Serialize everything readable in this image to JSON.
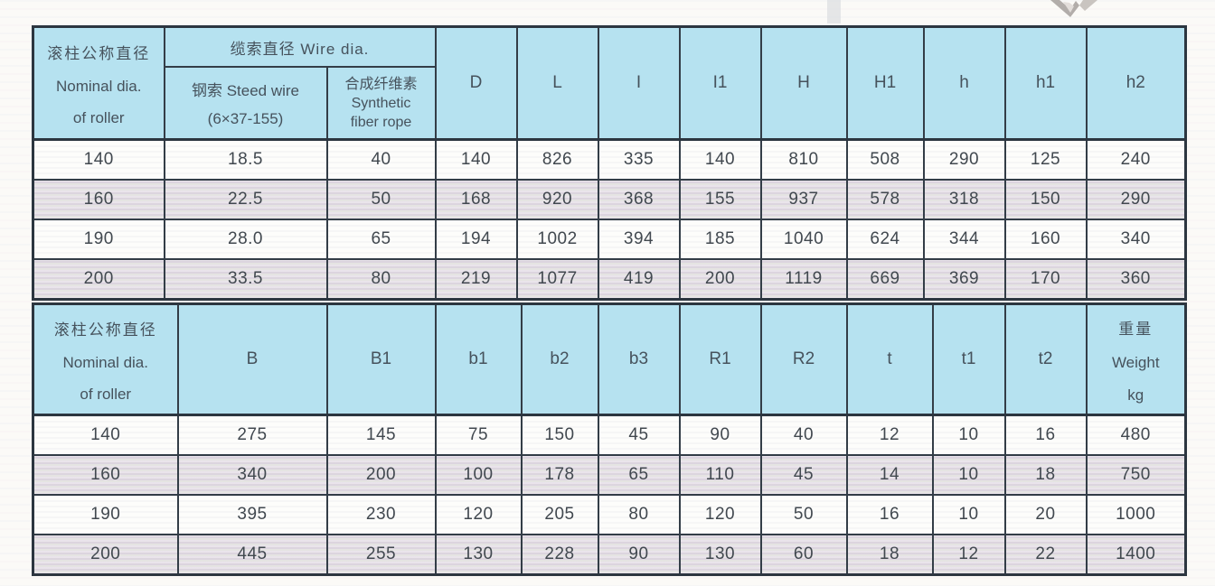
{
  "colors": {
    "header_bg": "#b6e2f0",
    "shaded_row": "#e4dfe5",
    "border": "#2c3640",
    "text": "#46525c"
  },
  "table1": {
    "roller_header": [
      "滚柱公称直径",
      "Nominal dia.",
      "of roller"
    ],
    "wire_dia_group": "缆索直径 Wire dia.",
    "steel_wire": [
      "钢索 Steed wire",
      "(6×37-155)"
    ],
    "synthetic": [
      "合成纤维素",
      "Synthetic",
      "fiber rope"
    ],
    "dim_headers": [
      "D",
      "L",
      "I",
      "I1",
      "H",
      "H1",
      "h",
      "h1",
      "h2"
    ],
    "rows": [
      [
        "140",
        "18.5",
        "40",
        "140",
        "826",
        "335",
        "140",
        "810",
        "508",
        "290",
        "125",
        "240"
      ],
      [
        "160",
        "22.5",
        "50",
        "168",
        "920",
        "368",
        "155",
        "937",
        "578",
        "318",
        "150",
        "290"
      ],
      [
        "190",
        "28.0",
        "65",
        "194",
        "1002",
        "394",
        "185",
        "1040",
        "624",
        "344",
        "160",
        "340"
      ],
      [
        "200",
        "33.5",
        "80",
        "219",
        "1077",
        "419",
        "200",
        "1119",
        "669",
        "369",
        "170",
        "360"
      ]
    ]
  },
  "table2": {
    "roller_header": [
      "滚柱公称直径",
      "Nominal dia.",
      "of roller"
    ],
    "dim_headers": [
      "B",
      "B1",
      "b1",
      "b2",
      "b3",
      "R1",
      "R2",
      "t",
      "t1",
      "t2"
    ],
    "weight_header": [
      "重量",
      "Weight",
      "kg"
    ],
    "rows": [
      [
        "140",
        "275",
        "145",
        "75",
        "150",
        "45",
        "90",
        "40",
        "12",
        "10",
        "16",
        "480"
      ],
      [
        "160",
        "340",
        "200",
        "100",
        "178",
        "65",
        "110",
        "45",
        "14",
        "10",
        "18",
        "750"
      ],
      [
        "190",
        "395",
        "230",
        "120",
        "205",
        "80",
        "120",
        "50",
        "16",
        "10",
        "20",
        "1000"
      ],
      [
        "200",
        "445",
        "255",
        "130",
        "228",
        "90",
        "130",
        "60",
        "18",
        "12",
        "22",
        "1400"
      ]
    ]
  }
}
